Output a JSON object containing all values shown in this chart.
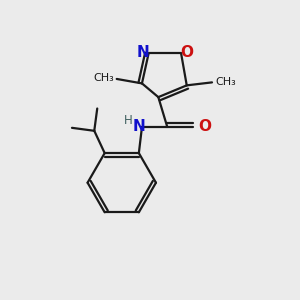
{
  "bg_color": "#ebebeb",
  "bond_color": "#1a1a1a",
  "N_color": "#1010cc",
  "O_color": "#cc1010",
  "line_width": 1.6,
  "font_size": 10,
  "fig_size": [
    3.0,
    3.0
  ],
  "dpi": 100,
  "xlim": [
    0,
    10
  ],
  "ylim": [
    0,
    10
  ]
}
